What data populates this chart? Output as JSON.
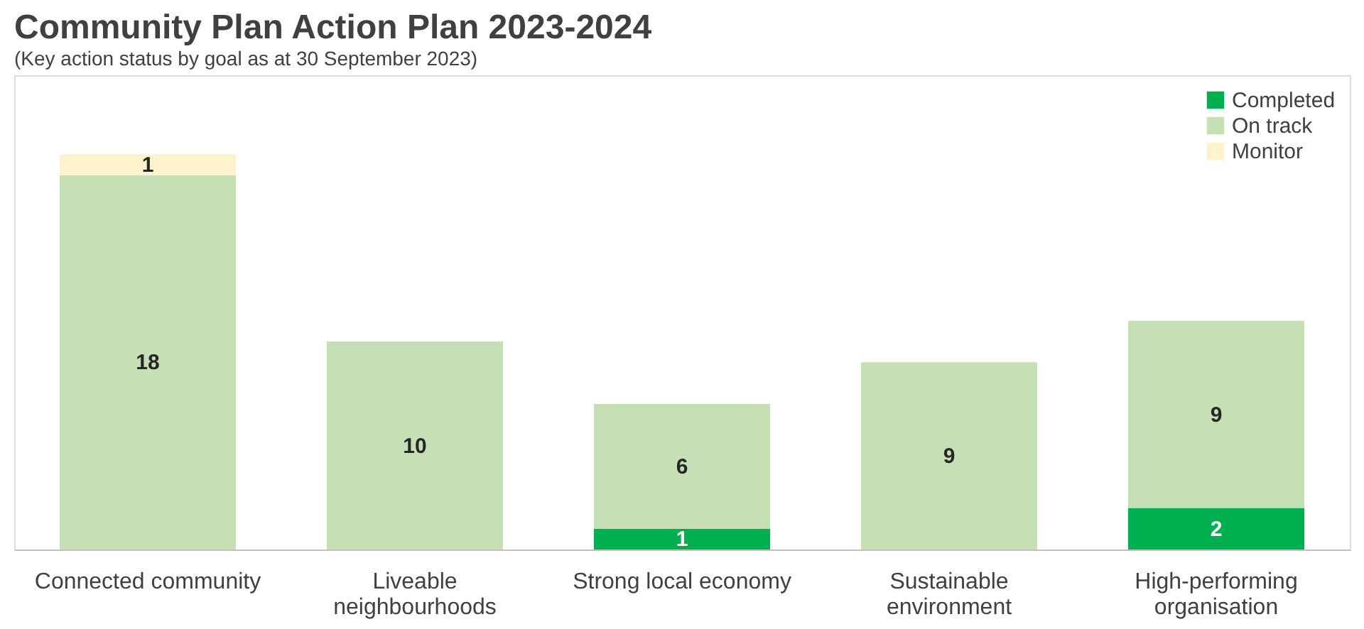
{
  "chart_data": {
    "type": "bar",
    "title": "Community Plan Action Plan 2023-2024",
    "subtitle": "(Key action status by goal as at 30 September 2023)",
    "categories": [
      "Connected community",
      "Liveable neighbourhoods",
      "Strong local economy",
      "Sustainable environment",
      "High-performing organisation"
    ],
    "stacked": true,
    "data_labels": true,
    "legend": "top right",
    "grid": false,
    "series": [
      {
        "name": "Completed",
        "color": "#00b050",
        "values": [
          null,
          null,
          1,
          null,
          2
        ]
      },
      {
        "name": "On track",
        "color": "#c5e0b4",
        "values": [
          18,
          10,
          6,
          9,
          9
        ]
      },
      {
        "name": "Monitor",
        "color": "#fff2cc",
        "values": [
          1,
          null,
          null,
          null,
          null
        ]
      }
    ]
  }
}
